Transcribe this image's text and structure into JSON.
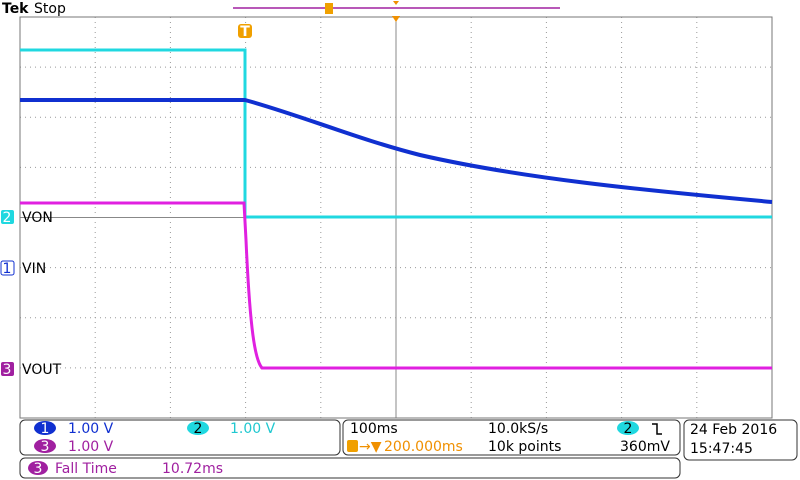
{
  "header": {
    "brand": "Tek",
    "status": "Stop"
  },
  "trigger_marker": "T",
  "channels": [
    {
      "number": "2",
      "label": "VON"
    },
    {
      "number": "1",
      "label": "VIN"
    },
    {
      "number": "3",
      "label": "VOUT"
    }
  ],
  "status_bar": {
    "ch1": {
      "number": "1",
      "scale": "1.00 V"
    },
    "ch2": {
      "number": "2",
      "scale": "1.00 V"
    },
    "ch3": {
      "number": "3",
      "scale": "1.00 V"
    },
    "timebase": "100ms",
    "sample_rate": "10.0kS/s",
    "trigger_position": "200.000ms",
    "record_length": "10k points",
    "trigger_source": "2",
    "trigger_level": "360mV",
    "date": "24 Feb 2016",
    "time": "15:47:45"
  },
  "measurement": {
    "number": "3",
    "name": "Fall Time",
    "value": "10.72ms"
  }
}
